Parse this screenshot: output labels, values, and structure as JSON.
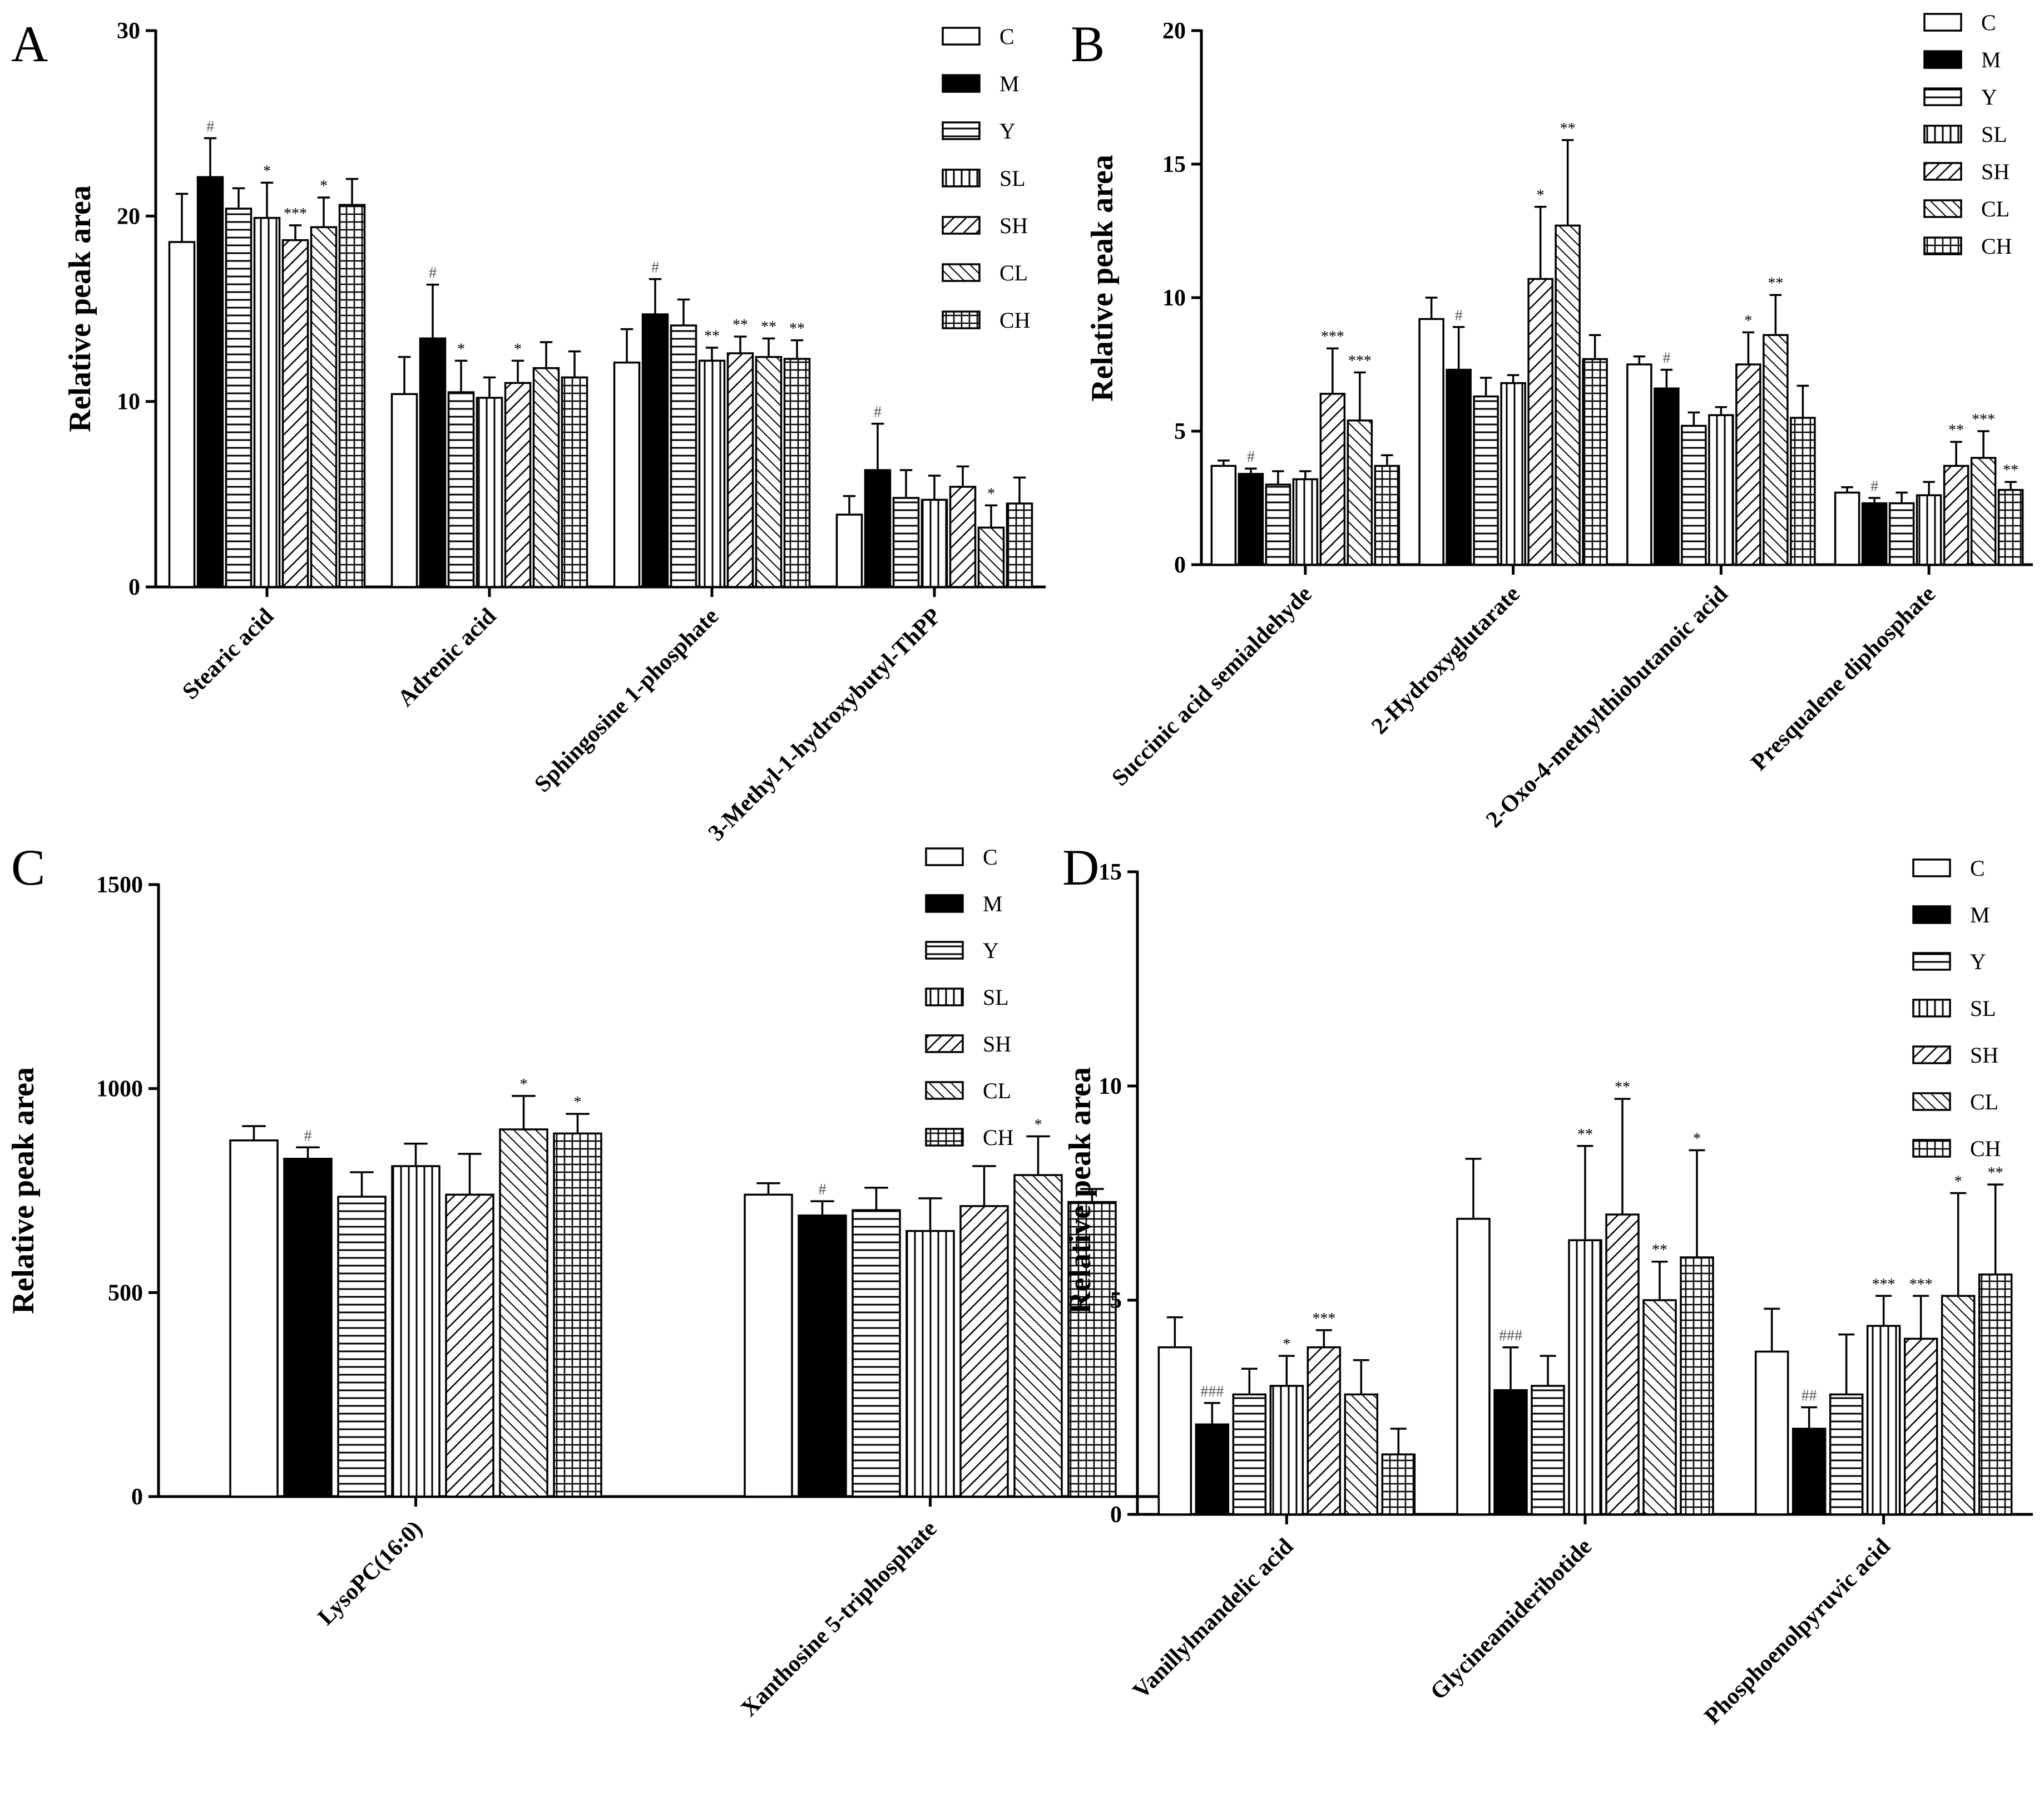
{
  "figure": {
    "background": "#ffffff",
    "ink": "#000000",
    "hash_color": "#555555"
  },
  "chart_data": [
    {
      "type": "bar",
      "panel": "A",
      "ylabel": "Relative peak area",
      "ylim": [
        0,
        30
      ],
      "yticks": [
        0,
        10,
        20,
        30
      ],
      "legend": [
        "C",
        "M",
        "Y",
        "SL",
        "SH",
        "CL",
        "CH"
      ],
      "categories": [
        "Stearic acid",
        "Adrenic acid",
        "Sphingosine 1-phosphate",
        "3-Methyl-1-hydroxybutyl-ThPP"
      ],
      "series": [
        {
          "name": "C",
          "values": [
            18.6,
            10.4,
            12.1,
            3.9
          ],
          "errors": [
            2.6,
            2.0,
            1.8,
            1.0
          ],
          "marks": [
            "",
            "",
            "",
            ""
          ]
        },
        {
          "name": "M",
          "values": [
            22.1,
            13.4,
            14.7,
            6.3
          ],
          "errors": [
            2.1,
            2.9,
            1.9,
            2.5
          ],
          "marks": [
            "#",
            "#",
            "#",
            "#"
          ]
        },
        {
          "name": "Y",
          "values": [
            20.4,
            10.5,
            14.1,
            4.8
          ],
          "errors": [
            1.1,
            1.7,
            1.4,
            1.5
          ],
          "marks": [
            "",
            "*",
            "",
            ""
          ]
        },
        {
          "name": "SL",
          "values": [
            19.9,
            10.2,
            12.2,
            4.7
          ],
          "errors": [
            1.9,
            1.1,
            0.7,
            1.3
          ],
          "marks": [
            "*",
            "",
            "**",
            ""
          ]
        },
        {
          "name": "SH",
          "values": [
            18.7,
            11.0,
            12.6,
            5.4
          ],
          "errors": [
            0.8,
            1.2,
            0.9,
            1.1
          ],
          "marks": [
            "***",
            "*",
            "**",
            ""
          ]
        },
        {
          "name": "CL",
          "values": [
            19.4,
            11.8,
            12.4,
            3.2
          ],
          "errors": [
            1.6,
            1.4,
            1.0,
            1.2
          ],
          "marks": [
            "*",
            "",
            "**",
            "*"
          ]
        },
        {
          "name": "CH",
          "values": [
            20.6,
            11.3,
            12.3,
            4.5
          ],
          "errors": [
            1.4,
            1.4,
            1.0,
            1.4
          ],
          "marks": [
            "",
            "",
            "**",
            ""
          ]
        }
      ]
    },
    {
      "type": "bar",
      "panel": "B",
      "ylabel": "Relative peak area",
      "ylim": [
        0,
        20
      ],
      "yticks": [
        0,
        5,
        10,
        15,
        20
      ],
      "legend": [
        "C",
        "M",
        "Y",
        "SL",
        "SH",
        "CL",
        "CH"
      ],
      "categories": [
        "Succinic acid semialdehyde",
        "2-Hydroxyglutarate",
        "2-Oxo-4-methylthiobutanoic acid",
        "Presqualene diphosphate"
      ],
      "series": [
        {
          "name": "C",
          "values": [
            3.7,
            9.2,
            7.5,
            2.7
          ],
          "errors": [
            0.2,
            0.8,
            0.3,
            0.2
          ],
          "marks": [
            "",
            "",
            "",
            ""
          ]
        },
        {
          "name": "M",
          "values": [
            3.4,
            7.3,
            6.6,
            2.3
          ],
          "errors": [
            0.2,
            1.6,
            0.7,
            0.2
          ],
          "marks": [
            "#",
            "#",
            "#",
            "#"
          ]
        },
        {
          "name": "Y",
          "values": [
            3.0,
            6.3,
            5.2,
            2.3
          ],
          "errors": [
            0.5,
            0.7,
            0.5,
            0.4
          ],
          "marks": [
            "",
            "",
            "",
            ""
          ]
        },
        {
          "name": "SL",
          "values": [
            3.2,
            6.8,
            5.6,
            2.6
          ],
          "errors": [
            0.3,
            0.3,
            0.3,
            0.5
          ],
          "marks": [
            "",
            "",
            "",
            ""
          ]
        },
        {
          "name": "SH",
          "values": [
            6.4,
            10.7,
            7.5,
            3.7
          ],
          "errors": [
            1.7,
            2.7,
            1.2,
            0.9
          ],
          "marks": [
            "***",
            "*",
            "*",
            "**"
          ]
        },
        {
          "name": "CL",
          "values": [
            5.4,
            12.7,
            8.6,
            4.0
          ],
          "errors": [
            1.8,
            3.2,
            1.5,
            1.0
          ],
          "marks": [
            "***",
            "**",
            "**",
            "***"
          ]
        },
        {
          "name": "CH",
          "values": [
            3.7,
            7.7,
            5.5,
            2.8
          ],
          "errors": [
            0.4,
            0.9,
            1.2,
            0.3
          ],
          "marks": [
            "",
            "",
            "",
            "**"
          ]
        }
      ]
    },
    {
      "type": "bar",
      "panel": "C",
      "ylabel": "Relative peak area",
      "ylim": [
        0,
        1500
      ],
      "yticks": [
        0,
        500,
        1000,
        1500
      ],
      "legend": [
        "C",
        "M",
        "Y",
        "SL",
        "SH",
        "CL",
        "CH"
      ],
      "categories": [
        "LysoPC(16:0)",
        "Xanthosine 5-triphosphate"
      ],
      "series": [
        {
          "name": "C",
          "values": [
            873,
            740
          ],
          "errors": [
            35,
            28
          ],
          "marks": [
            "",
            ""
          ]
        },
        {
          "name": "M",
          "values": [
            828,
            689
          ],
          "errors": [
            28,
            35
          ],
          "marks": [
            "#",
            "#"
          ]
        },
        {
          "name": "Y",
          "values": [
            735,
            702
          ],
          "errors": [
            60,
            55
          ],
          "marks": [
            "",
            ""
          ]
        },
        {
          "name": "SL",
          "values": [
            810,
            651
          ],
          "errors": [
            55,
            80
          ],
          "marks": [
            "",
            ""
          ]
        },
        {
          "name": "SH",
          "values": [
            740,
            712
          ],
          "errors": [
            100,
            98
          ],
          "marks": [
            "",
            ""
          ]
        },
        {
          "name": "CL",
          "values": [
            900,
            788
          ],
          "errors": [
            82,
            95
          ],
          "marks": [
            "*",
            "*"
          ]
        },
        {
          "name": "CH",
          "values": [
            890,
            722
          ],
          "errors": [
            48,
            32
          ],
          "marks": [
            "*",
            ""
          ]
        }
      ]
    },
    {
      "type": "bar",
      "panel": "D",
      "ylabel": "Relative peak area",
      "ylim": [
        0,
        15
      ],
      "yticks": [
        0,
        5,
        10,
        15
      ],
      "legend": [
        "C",
        "M",
        "Y",
        "SL",
        "SH",
        "CL",
        "CH"
      ],
      "categories": [
        "Vanillylmandelic acid",
        "Glycineamideribotide",
        "Phosphoenolpyruvic acid"
      ],
      "series": [
        {
          "name": "C",
          "values": [
            3.9,
            6.9,
            3.8
          ],
          "errors": [
            0.7,
            1.4,
            1.0
          ],
          "marks": [
            "",
            "",
            ""
          ]
        },
        {
          "name": "M",
          "values": [
            2.1,
            2.9,
            2.0
          ],
          "errors": [
            0.5,
            1.0,
            0.5
          ],
          "marks": [
            "###",
            "###",
            "##"
          ]
        },
        {
          "name": "Y",
          "values": [
            2.8,
            3.0,
            2.8
          ],
          "errors": [
            0.6,
            0.7,
            1.4
          ],
          "marks": [
            "",
            "",
            ""
          ]
        },
        {
          "name": "SL",
          "values": [
            3.0,
            6.4,
            4.4
          ],
          "errors": [
            0.7,
            2.2,
            0.7
          ],
          "marks": [
            "*",
            "**",
            "***"
          ]
        },
        {
          "name": "SH",
          "values": [
            3.9,
            7.0,
            4.1
          ],
          "errors": [
            0.4,
            2.7,
            1.0
          ],
          "marks": [
            "***",
            "**",
            "***"
          ]
        },
        {
          "name": "CL",
          "values": [
            2.8,
            5.0,
            5.1
          ],
          "errors": [
            0.8,
            0.9,
            2.4
          ],
          "marks": [
            "",
            "**",
            "*"
          ]
        },
        {
          "name": "CH",
          "values": [
            1.4,
            6.0,
            5.6
          ],
          "errors": [
            0.6,
            2.5,
            2.1
          ],
          "marks": [
            "",
            "*",
            "**"
          ]
        }
      ]
    }
  ]
}
